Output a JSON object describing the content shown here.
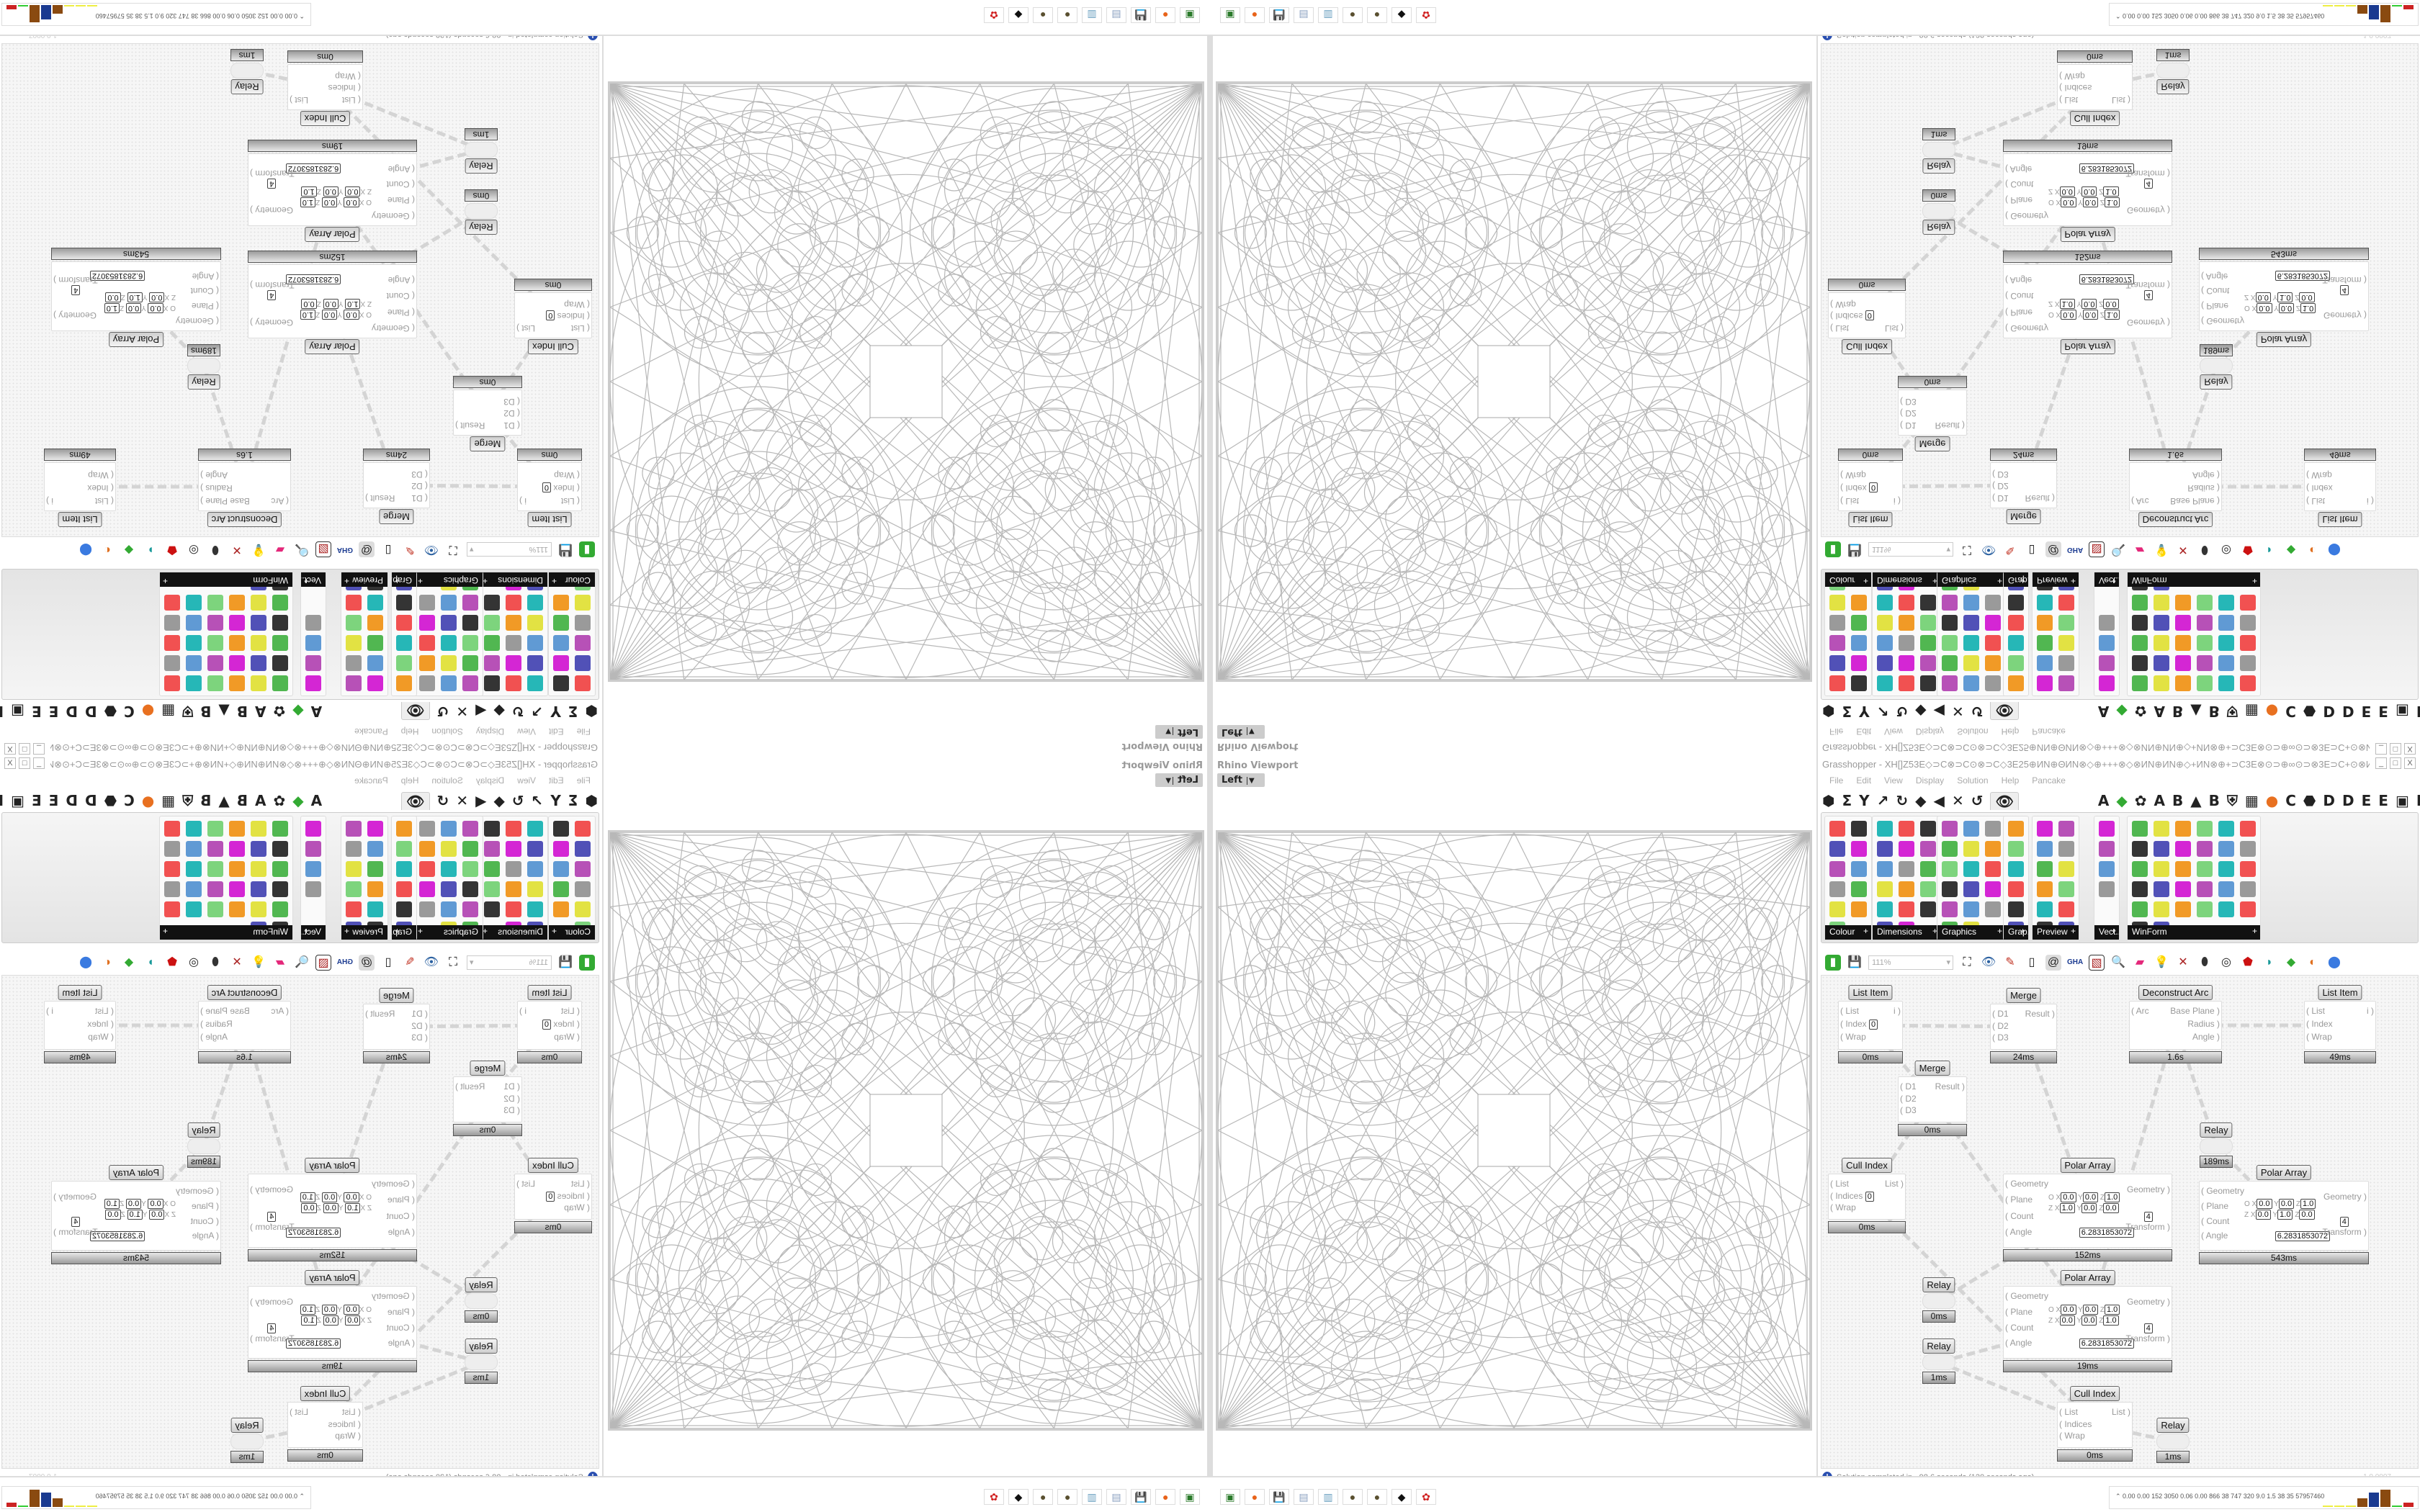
{
  "viewport": {
    "title": "Rhino Viewport",
    "view": "Left"
  },
  "grasshopper": {
    "title": "Grasshopper - XH[]Z53E◇⊃C⊗⊃C⊙⊗⊃C◇3E25⊕ИN⊕ΘИN⊗◇⊕+++⊗◇⊗ИN⊕ИN⊕◇+ИN⊗⊕+⊃C3E⊗⊙⊃⊕∞⊙⊃⊗3E⊃C+⊙⊗ИN+◇⊕3E⊗3E⊞+25+⊞3E⊗3E⊕◇+⊗⊃3E⊕+⊃C...",
    "menu": [
      "File",
      "Edit",
      "View",
      "Display",
      "Solution",
      "Help",
      "Pancake"
    ],
    "tab_glyphs": [
      "⬢",
      "Σ",
      "Y",
      "↗",
      "↻",
      "◆",
      "◀",
      "✕",
      "↺"
    ],
    "tab_selected": "👁",
    "tab_letters": [
      "A",
      "◆",
      "✿",
      "A",
      "B",
      "▲",
      "B",
      "⛨",
      "▦",
      "●",
      "C",
      "⬣",
      "D",
      "D",
      "E",
      "E",
      "▣",
      "E"
    ],
    "ribbon_panels": [
      {
        "label": "Colour",
        "cols": 2,
        "count": 11
      },
      {
        "label": "Dimensions",
        "cols": 3,
        "count": 17
      },
      {
        "label": "Graphics",
        "cols": 3,
        "count": 17
      },
      {
        "label": "Grap...",
        "cols": 1,
        "count": 6
      },
      {
        "label": "Preview",
        "cols": 2,
        "count": 12
      },
      {
        "label": "Vect...",
        "cols": 1,
        "count": 4
      },
      {
        "label": "WinForm",
        "cols": 6,
        "count": 32
      }
    ],
    "zoom_level": "111%",
    "status": "Solution completed in ~98.6 seconds (120 seconds ago)",
    "version": "1.0.0007",
    "nodes": [
      {
        "title": "List Item",
        "inputs": [
          "List",
          "Index",
          "Wrap"
        ],
        "input_values": [
          "",
          "0",
          ""
        ],
        "outputs": [
          "i"
        ],
        "timer": "0ms"
      },
      {
        "title": "Merge",
        "inputs": [
          "D1",
          "D2",
          "D3"
        ],
        "outputs": [
          "Result"
        ],
        "timer": "24ms"
      },
      {
        "title": "Merge",
        "inputs": [
          "D1",
          "D2",
          "D3"
        ],
        "outputs": [
          "Result"
        ],
        "timer": "0ms"
      },
      {
        "title": "Deconstruct Arc",
        "inputs": [
          "Arc"
        ],
        "outputs": [
          "Base Plane",
          "Radius",
          "Angle"
        ],
        "timer": "1.6s"
      },
      {
        "title": "List Item",
        "inputs": [
          "List",
          "Index",
          "Wrap"
        ],
        "outputs": [
          "i"
        ],
        "timer": "49ms"
      },
      {
        "title": "Relay",
        "timer": "189ms"
      },
      {
        "title": "Cull Index",
        "inputs": [
          "List",
          "Indices",
          "Wrap"
        ],
        "input_values": [
          "",
          "0",
          ""
        ],
        "outputs": [
          "List"
        ],
        "timer": "0ms"
      },
      {
        "title": "Polar Array",
        "inputs": [
          "Geometry",
          "Plane",
          "Count",
          "Angle"
        ],
        "outputs": [
          "Geometry",
          "Transform"
        ],
        "plane": [
          "0.0",
          "0.0",
          "1.0",
          "1.0",
          "0.0",
          "0.0"
        ],
        "count": "4",
        "angle": "6.2831853072",
        "timer": "152ms"
      },
      {
        "title": "Polar Array",
        "inputs": [
          "Geometry",
          "Plane",
          "Count",
          "Angle"
        ],
        "outputs": [
          "Geometry",
          "Transform"
        ],
        "plane": [
          "0.0",
          "0.0",
          "1.0",
          "0.0",
          "1.0",
          "0.0"
        ],
        "count": "4",
        "angle": "6.2831853072",
        "timer": "543ms"
      },
      {
        "title": "Polar Array",
        "inputs": [
          "Geometry",
          "Plane",
          "Count",
          "Angle"
        ],
        "outputs": [
          "Geometry",
          "Transform"
        ],
        "plane": [
          "0.0",
          "0.0",
          "1.0",
          "0.0",
          "0.0",
          "1.0"
        ],
        "count": "4",
        "angle": "6.2831853072",
        "timer": "19ms"
      },
      {
        "title": "Relay",
        "timer": "0ms"
      },
      {
        "title": "Relay",
        "timer": "1ms"
      },
      {
        "title": "Cull Index",
        "inputs": [
          "List",
          "Indices",
          "Wrap"
        ],
        "outputs": [
          "List"
        ],
        "timer": "0ms"
      },
      {
        "title": "Relay",
        "timer": "1ms"
      }
    ]
  },
  "taskbar": {
    "apps": [
      {
        "icon": "monitor-icon",
        "glyph": "▣",
        "color": "#2a7a2a"
      },
      {
        "icon": "firefox-icon",
        "glyph": "●",
        "color": "#e8631a"
      },
      {
        "icon": "floppy-64-icon",
        "glyph": "💾",
        "color": "#3a2a9a"
      },
      {
        "icon": "scroll-icon",
        "glyph": "▤",
        "color": "#8aa0c0"
      },
      {
        "icon": "notepad-icon",
        "glyph": "▥",
        "color": "#6aa0c0"
      },
      {
        "icon": "sphere-icon",
        "glyph": "●",
        "color": "#5a5030"
      },
      {
        "icon": "sphere-icon",
        "glyph": "●",
        "color": "#5a5030"
      },
      {
        "icon": "rhino-icon",
        "glyph": "◆",
        "color": "#111111"
      },
      {
        "icon": "gear-red-icon",
        "glyph": "✿",
        "color": "#d02020"
      }
    ],
    "perf_readout": "0.00 0.00 152 3050 0.06 0.00 866  38  747  320  9.0  1.5  38  35  57957460"
  }
}
